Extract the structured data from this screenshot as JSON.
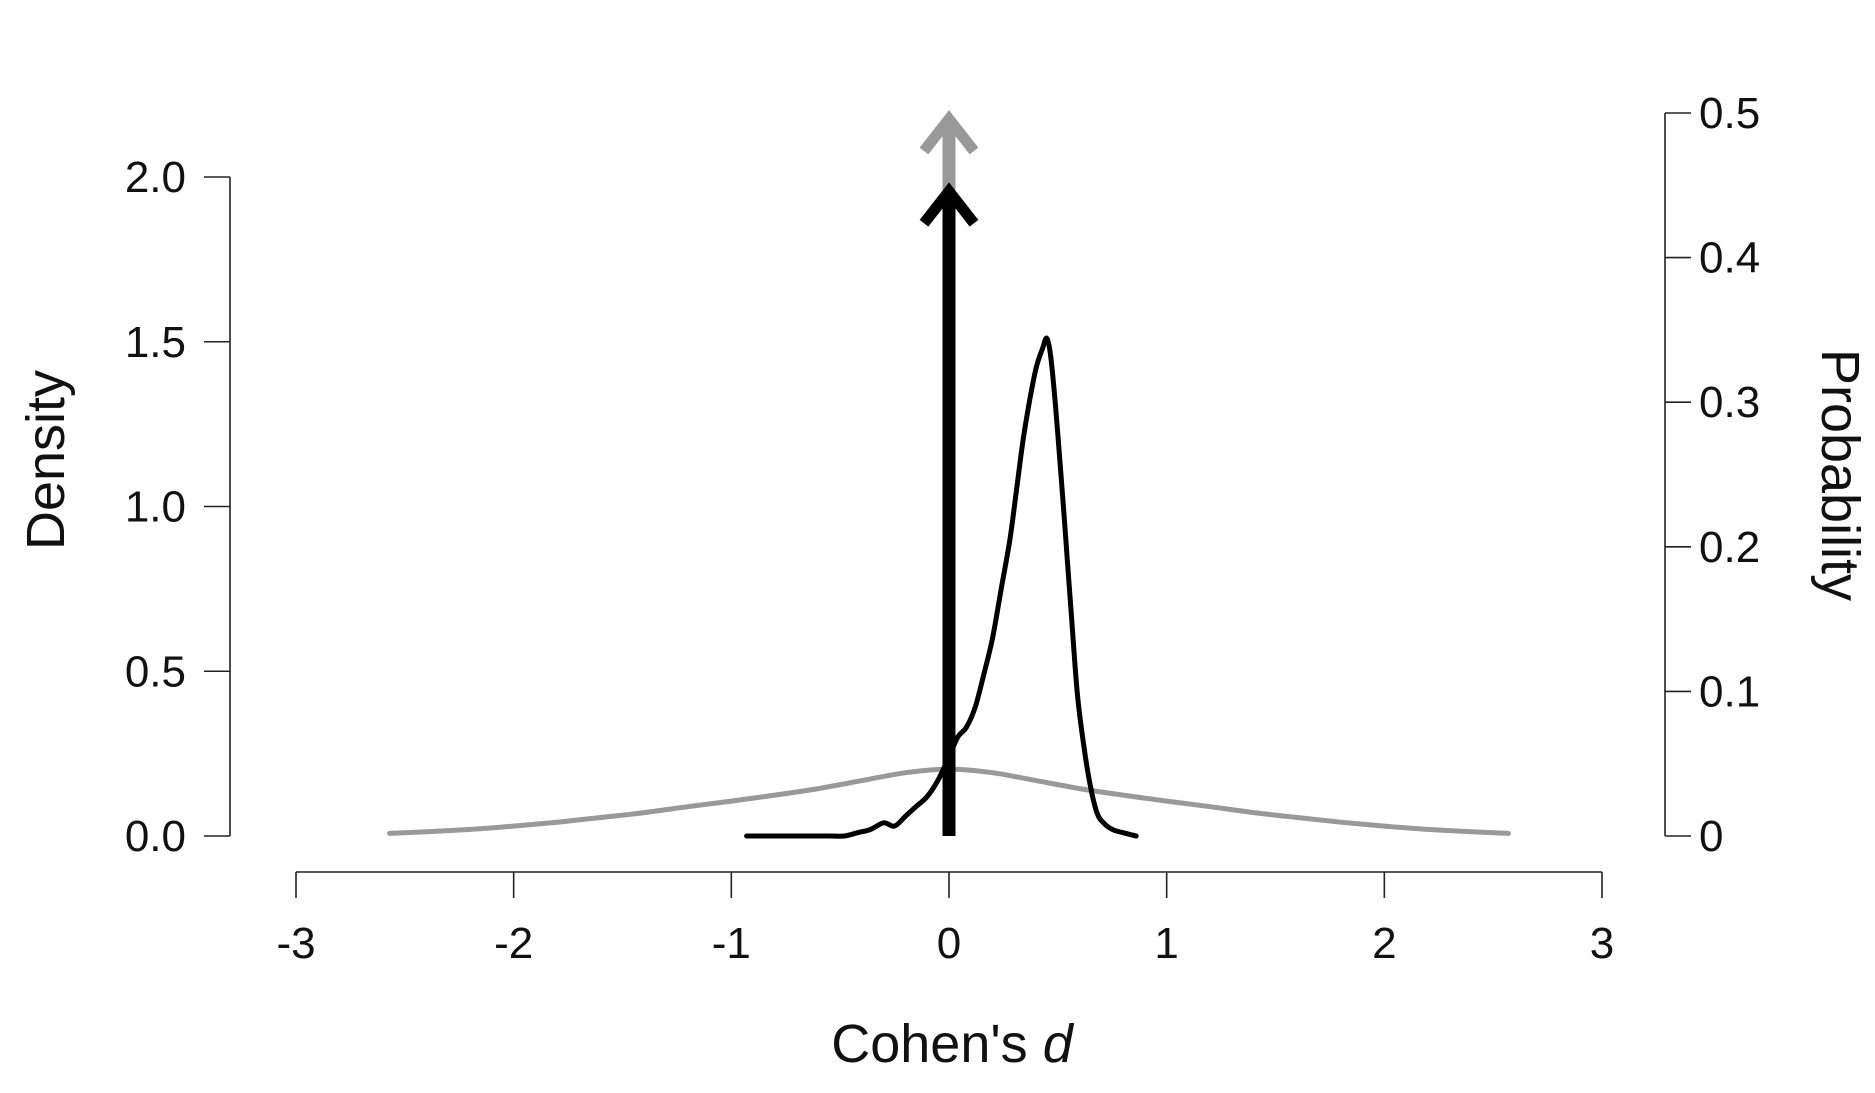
{
  "chart_data": {
    "type": "line",
    "xlabel_main": "Cohen's ",
    "xlabel_italic": "d",
    "ylabel_left": "Density",
    "ylabel_right": "Probability",
    "xlim": [
      -3,
      3
    ],
    "ylim_left": [
      0,
      2
    ],
    "ylim_right": [
      0,
      0.5
    ],
    "x_ticks": [
      -3,
      -2,
      -1,
      0,
      1,
      2,
      3
    ],
    "x_tick_labels": [
      "-3",
      "-2",
      "-1",
      "0",
      "1",
      "2",
      "3"
    ],
    "y_left_ticks": [
      0,
      0.5,
      1.0,
      1.5,
      2.0
    ],
    "y_left_tick_labels": [
      "0.0",
      "0.5",
      "1.0",
      "1.5",
      "2.0"
    ],
    "y_right_ticks": [
      0,
      0.1,
      0.2,
      0.3,
      0.4,
      0.5
    ],
    "y_right_tick_labels": [
      "0",
      "0.1",
      "0.2",
      "0.3",
      "0.4",
      "0.5"
    ],
    "colors": {
      "prior": "#999999",
      "posterior": "#000000"
    },
    "series": [
      {
        "role": "prior",
        "x": [
          -2.57,
          -2.4,
          -2.2,
          -2.0,
          -1.8,
          -1.6,
          -1.4,
          -1.2,
          -1.0,
          -0.8,
          -0.6,
          -0.4,
          -0.2,
          0.0,
          0.2,
          0.4,
          0.6,
          0.8,
          1.0,
          1.2,
          1.4,
          1.6,
          1.8,
          2.0,
          2.2,
          2.4,
          2.57
        ],
        "y": [
          0.008,
          0.013,
          0.02,
          0.03,
          0.042,
          0.056,
          0.071,
          0.089,
          0.106,
          0.124,
          0.144,
          0.168,
          0.192,
          0.203,
          0.192,
          0.168,
          0.144,
          0.124,
          0.106,
          0.089,
          0.071,
          0.056,
          0.042,
          0.03,
          0.02,
          0.013,
          0.008
        ]
      },
      {
        "role": "posterior",
        "x": [
          -0.93,
          -0.85,
          -0.75,
          -0.65,
          -0.55,
          -0.48,
          -0.42,
          -0.36,
          -0.3,
          -0.25,
          -0.2,
          -0.15,
          -0.1,
          -0.05,
          0.0,
          0.04,
          0.08,
          0.12,
          0.16,
          0.2,
          0.24,
          0.28,
          0.31,
          0.34,
          0.37,
          0.4,
          0.43,
          0.45,
          0.47,
          0.5,
          0.53,
          0.56,
          0.59,
          0.62,
          0.65,
          0.68,
          0.71,
          0.75,
          0.8,
          0.86
        ],
        "y": [
          0.0,
          0.0,
          0.0,
          0.0,
          0.0,
          0.0,
          0.01,
          0.02,
          0.04,
          0.03,
          0.06,
          0.09,
          0.12,
          0.17,
          0.24,
          0.3,
          0.33,
          0.39,
          0.49,
          0.6,
          0.75,
          0.9,
          1.05,
          1.2,
          1.32,
          1.42,
          1.48,
          1.51,
          1.44,
          1.22,
          0.96,
          0.69,
          0.43,
          0.27,
          0.15,
          0.07,
          0.04,
          0.02,
          0.01,
          0.0
        ]
      }
    ],
    "point_mass_arrows": [
      {
        "role": "prior",
        "x": 0,
        "probability": 0.5
      },
      {
        "role": "posterior",
        "x": 0,
        "probability": 0.45
      }
    ]
  }
}
